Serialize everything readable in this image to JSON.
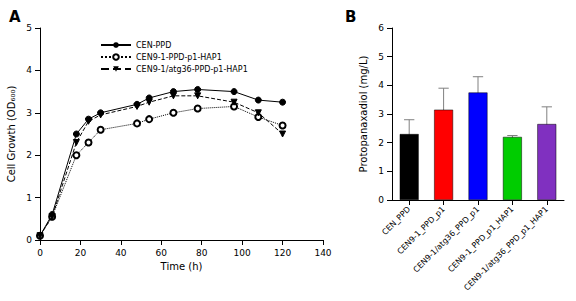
{
  "chart_data": [
    {
      "type": "line",
      "title": "A",
      "x_label": "Time (h)",
      "y_label": "Cell Growth (OD₆₀₀)",
      "xlim": [
        0,
        140
      ],
      "xticks": [
        0,
        20,
        40,
        60,
        80,
        100,
        120,
        140
      ],
      "ylim": [
        0,
        5
      ],
      "yticks": [
        0,
        1,
        2,
        3,
        4,
        5
      ],
      "grid": false,
      "legend": "upper left",
      "series": [
        {
          "name": "CEN-PPD",
          "color": "#000000",
          "marker": "circle",
          "line_style": "solid",
          "x": [
            0,
            6,
            18,
            24,
            30,
            48,
            54,
            66,
            78,
            96,
            108,
            120
          ],
          "values": [
            0.1,
            0.6,
            2.5,
            2.85,
            3.0,
            3.2,
            3.35,
            3.5,
            3.55,
            3.5,
            3.3,
            3.25
          ]
        },
        {
          "name": "CEN9-1-PPD-p1-HAP1",
          "color": "#000000",
          "marker": "open_circle",
          "line_style": "dotted",
          "x": [
            0,
            6,
            18,
            24,
            30,
            48,
            54,
            66,
            78,
            96,
            108,
            120
          ],
          "values": [
            0.1,
            0.55,
            2.0,
            2.3,
            2.6,
            2.75,
            2.85,
            3.0,
            3.1,
            3.15,
            2.9,
            2.7
          ]
        },
        {
          "name": "CEN9-1/atg36-PPD-p1-HAP1",
          "color": "#000000",
          "marker": "triangle_down",
          "line_style": "dashed",
          "x": [
            0,
            6,
            18,
            24,
            30,
            48,
            54,
            66,
            78,
            96,
            108,
            120
          ],
          "values": [
            0.1,
            0.55,
            2.3,
            2.8,
            2.95,
            3.15,
            3.25,
            3.4,
            3.4,
            3.25,
            3.0,
            2.5
          ]
        }
      ]
    },
    {
      "type": "bar",
      "title": "B",
      "y_label": "Protopanaxadiol (mg/L)",
      "categories": [
        "CEN_PPD",
        "CEN9-1_PPD_p1",
        "CEN9-1/atg36_PPD_p1",
        "CEN9-1_PPD_p1_HAP1",
        "CEN9-1/atg36_PPD_p1_HAP1"
      ],
      "values": [
        2.3,
        3.15,
        3.75,
        2.2,
        2.65
      ],
      "errors": [
        0.5,
        0.75,
        0.55,
        0.05,
        0.6
      ],
      "colors": [
        "#000000",
        "#ff0000",
        "#0000ff",
        "#00cc00",
        "#8030c0"
      ],
      "ylim": [
        0,
        6
      ],
      "yticks": [
        0,
        1,
        2,
        3,
        4,
        5,
        6
      ],
      "grid": false
    }
  ]
}
